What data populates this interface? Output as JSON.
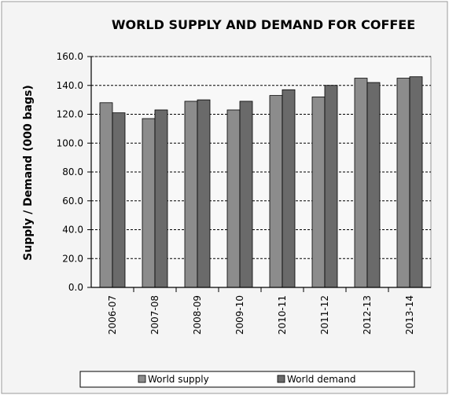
{
  "chart_data": {
    "type": "bar",
    "title": "WORLD SUPPLY AND DEMAND FOR COFFEE",
    "ylabel": "Supply / Demand (000 bags)",
    "xlabel": "",
    "categories": [
      "2006-07",
      "2007-08",
      "2008-09",
      "2009-10",
      "2010-11",
      "2011-12",
      "2012-13",
      "2013-14"
    ],
    "series": [
      {
        "name": "World supply",
        "values": [
          128,
          117,
          129,
          123,
          133,
          132,
          145,
          145
        ],
        "color": "#8c8c8c"
      },
      {
        "name": "World demand",
        "values": [
          121,
          123,
          130,
          129,
          137,
          140,
          142,
          146
        ],
        "color": "#6a6a6a"
      }
    ],
    "ylim": [
      0,
      160
    ],
    "yticks": [
      "0.0",
      "20.0",
      "40.0",
      "60.0",
      "80.0",
      "100.0",
      "120.0",
      "140.0",
      "160.0"
    ],
    "grid": true,
    "legend_position": "bottom",
    "plot_background": "#f8f8f8",
    "outer_background": "#f4f4f4"
  }
}
